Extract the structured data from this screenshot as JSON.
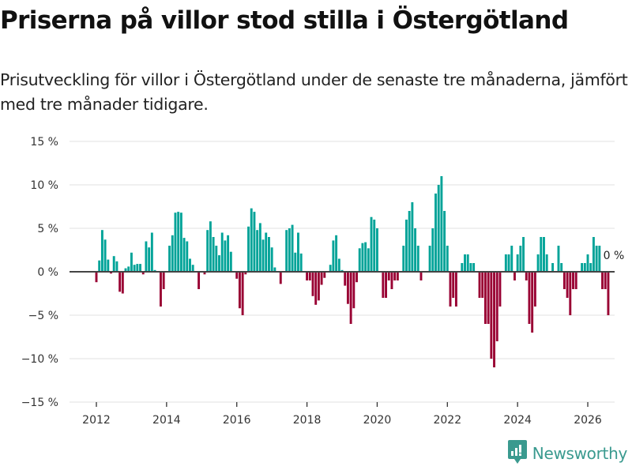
{
  "header": {
    "title": "Priserna på villor stod stilla i Östergötland",
    "subtitle": "Prisutveckling för villor i Östergötland under de senaste tre månaderna, jämfört med tre månader tidigare."
  },
  "brand": {
    "name": "Newsworthy",
    "icon": "bar-chart-bubble-icon",
    "color": "#3a9a8f"
  },
  "colors": {
    "positive": "#00a398",
    "negative": "#990033",
    "zero_line": "#444444",
    "grid": "#e2e2e2"
  },
  "chart_data": {
    "type": "bar",
    "title": "Priserna på villor stod stilla i Östergötland",
    "subtitle": "Prisutveckling för villor i Östergötland under de senaste tre månaderna, jämfört med tre månader tidigare.",
    "xlabel": "",
    "ylabel": "",
    "ylim": [
      -15,
      15
    ],
    "yticks": [
      15,
      10,
      5,
      0,
      -5,
      -10,
      -15
    ],
    "ytick_labels": [
      "15 %",
      "10 %",
      "5 %",
      "0 %",
      "−5 %",
      "−10 %",
      "−15 %"
    ],
    "xticks": [
      "2012",
      "2014",
      "2016",
      "2018",
      "2020",
      "2022",
      "2024",
      "2026"
    ],
    "x_start": "2012-01",
    "x_unit": "month",
    "grid": true,
    "end_label": "0 %",
    "values": [
      -1.2,
      1.3,
      4.8,
      3.7,
      1.4,
      -0.2,
      1.8,
      1.2,
      -2.3,
      -2.5,
      0.4,
      0.6,
      2.2,
      0.8,
      0.9,
      0.9,
      -0.3,
      3.5,
      2.8,
      4.5,
      0.2,
      0,
      -4.0,
      -2.0,
      0,
      3.0,
      4.2,
      6.8,
      6.9,
      6.8,
      3.9,
      3.5,
      1.5,
      0.8,
      0,
      -2.0,
      0,
      -0.3,
      4.8,
      5.8,
      4.0,
      3.0,
      1.9,
      4.5,
      3.6,
      4.2,
      2.3,
      0,
      -0.8,
      -4.2,
      -5.0,
      -0.3,
      5.2,
      7.3,
      6.9,
      4.8,
      5.6,
      3.7,
      4.5,
      4.0,
      2.8,
      0.5,
      0,
      -1.4,
      0,
      4.8,
      5.0,
      5.4,
      2.2,
      4.5,
      2.1,
      0,
      -1.0,
      -1.0,
      -2.8,
      -3.8,
      -3.3,
      -1.5,
      -0.7,
      0,
      0.8,
      3.6,
      4.2,
      1.5,
      0.2,
      -1.6,
      -3.7,
      -6.0,
      -4.2,
      -1.2,
      2.7,
      3.3,
      3.4,
      2.7,
      6.3,
      6.0,
      5.0,
      0,
      -3.0,
      -3.0,
      -1.0,
      -2.0,
      -1.0,
      -1.0,
      0,
      3.0,
      6.0,
      7.0,
      8.0,
      5.0,
      3.0,
      -1.0,
      0,
      0,
      3.0,
      5.0,
      9.0,
      10.0,
      11.0,
      7.0,
      3.0,
      -4.0,
      -3.0,
      -4.0,
      0,
      1.0,
      2.0,
      2.0,
      1.0,
      1.0,
      0,
      -3.0,
      -3.0,
      -6.0,
      -6.0,
      -10.0,
      -11.0,
      -8.0,
      -4.0,
      0,
      2.0,
      2.0,
      3.0,
      -1.0,
      2.0,
      3.0,
      4.0,
      -1.0,
      -6.0,
      -7.0,
      -4.0,
      2.0,
      4.0,
      4.0,
      2.0,
      0,
      1.0,
      0,
      3.0,
      1.0,
      -2.0,
      -3.0,
      -5.0,
      -2.0,
      -2.0,
      0,
      1.0,
      1.0,
      2.0,
      1.0,
      4.0,
      3.0,
      3.0,
      -2.0,
      -2.0,
      -5.0,
      0
    ]
  }
}
